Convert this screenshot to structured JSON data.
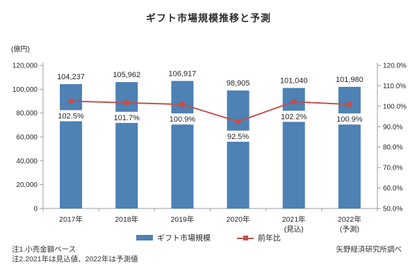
{
  "title": "ギフト市場規模推移と予測",
  "chart_data": {
    "type": "bar",
    "subtype": "bar-line-combo",
    "title": "ギフト市場規模推移と予測",
    "unit_label": "(億円)",
    "xlabel": "",
    "ylabel_left": "(億円)",
    "ylabel_right": "",
    "grid": false,
    "legend_position": "bottom",
    "categories": [
      "2017年",
      "2018年",
      "2019年",
      "2020年",
      "2021年",
      "2022年"
    ],
    "category_sublabels": [
      "",
      "",
      "",
      "",
      "(見込)",
      "(予測)"
    ],
    "series": [
      {
        "name": "ギフト市場規模",
        "type": "bar",
        "axis": "left",
        "values": [
          104237,
          105962,
          106917,
          98905,
          101040,
          101980
        ],
        "labels": [
          "104,237",
          "105,962",
          "106,917",
          "98,905",
          "101,040",
          "101,980"
        ]
      },
      {
        "name": "前年比",
        "type": "line",
        "axis": "right",
        "values": [
          102.5,
          101.7,
          100.9,
          92.5,
          102.2,
          100.9
        ],
        "labels": [
          "102.5%",
          "101.7%",
          "100.9%",
          "92.5%",
          "102.2%",
          "100.9%"
        ]
      }
    ],
    "left_axis": {
      "min": 0,
      "max": 120000,
      "step": 20000,
      "tick_labels": [
        "0",
        "20,000",
        "40,000",
        "60,000",
        "80,000",
        "100,000",
        "120,000"
      ]
    },
    "right_axis": {
      "min": 50,
      "max": 120,
      "step": 10,
      "tick_labels": [
        "50.0%",
        "60.0%",
        "70.0%",
        "80.0%",
        "90.0%",
        "100.0%",
        "110.0%",
        "120.0%"
      ]
    }
  },
  "legend": {
    "bar_label": "ギフト市場規模",
    "line_label": "前年比"
  },
  "notes": {
    "note1": "注1.小売金額ベース",
    "note2": "注2.2021年は見込値、2022年は予測値",
    "source": "矢野経済研究所調べ"
  },
  "colors": {
    "bar": "#4e81b4",
    "line": "#c0504d",
    "axis": "#9b9b9b",
    "text": "#262626",
    "label_bg": "#ffffff"
  }
}
